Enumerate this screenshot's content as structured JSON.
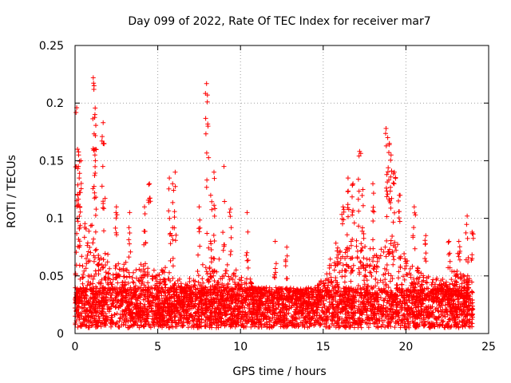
{
  "chart_data": {
    "type": "scatter",
    "title": "Day 099 of 2022, Rate Of TEC Index for receiver mar7",
    "xlabel": "GPS time / hours",
    "ylabel": "ROTI / TECUs",
    "xlim": [
      0,
      25
    ],
    "ylim": [
      0,
      0.25
    ],
    "x_ticks": [
      "0",
      "5",
      "10",
      "15",
      "20",
      "25"
    ],
    "y_ticks": [
      "0",
      "0.05",
      "0.1",
      "0.15",
      "0.2",
      "0.25"
    ],
    "grid": true,
    "marker": "+",
    "series_color": "#ff0000",
    "envelope": {
      "description_of_values": "approximate upper edge of the dense point cloud (hour, ROTI)",
      "x": [
        0,
        0.5,
        1,
        1.5,
        2,
        2.5,
        3,
        3.5,
        4,
        4.5,
        5,
        5.5,
        6,
        6.5,
        7,
        7.5,
        8,
        8.5,
        9,
        9.5,
        10,
        10.5,
        11,
        11.5,
        12,
        12.5,
        13,
        13.5,
        14,
        14.5,
        15,
        15.5,
        16,
        16.5,
        17,
        17.5,
        18,
        18.5,
        19,
        19.5,
        20,
        20.5,
        21,
        21.5,
        22,
        22.5,
        23,
        23.5,
        24
      ],
      "y": [
        0.08,
        0.1,
        0.11,
        0.09,
        0.08,
        0.07,
        0.07,
        0.06,
        0.07,
        0.06,
        0.06,
        0.07,
        0.06,
        0.04,
        0.05,
        0.06,
        0.06,
        0.07,
        0.07,
        0.06,
        0.05,
        0.05,
        0.04,
        0.04,
        0.04,
        0.04,
        0.04,
        0.04,
        0.04,
        0.04,
        0.05,
        0.07,
        0.09,
        0.1,
        0.1,
        0.08,
        0.08,
        0.08,
        0.11,
        0.1,
        0.08,
        0.07,
        0.06,
        0.05,
        0.05,
        0.05,
        0.06,
        0.06,
        0.05
      ]
    },
    "peaks": {
      "x": [
        0.1,
        0.15,
        0.2,
        0.25,
        0.35,
        1.1,
        1.15,
        1.2,
        1.25,
        1.7,
        1.75,
        2.5,
        3.3,
        4.2,
        4.5,
        5.7,
        5.9,
        6.05,
        7.5,
        7.95,
        8.0,
        8.2,
        8.4,
        9.0,
        9.4,
        10.4,
        12.1,
        12.8,
        16.2,
        16.5,
        16.8,
        17.2,
        17.4,
        18.0,
        18.8,
        18.9,
        19.0,
        19.1,
        19.3,
        19.6,
        20.5,
        21.2,
        22.6,
        23.2,
        23.7,
        24.0
      ],
      "y": [
        0.196,
        0.16,
        0.145,
        0.135,
        0.15,
        0.222,
        0.215,
        0.19,
        0.16,
        0.183,
        0.165,
        0.11,
        0.105,
        0.11,
        0.13,
        0.135,
        0.13,
        0.14,
        0.11,
        0.217,
        0.207,
        0.12,
        0.14,
        0.145,
        0.108,
        0.105,
        0.08,
        0.075,
        0.11,
        0.135,
        0.13,
        0.158,
        0.125,
        0.13,
        0.178,
        0.17,
        0.165,
        0.155,
        0.14,
        0.12,
        0.11,
        0.085,
        0.08,
        0.08,
        0.102,
        0.088
      ]
    },
    "n_points": 9000,
    "baseline": [
      0.005,
      0.04
    ]
  }
}
